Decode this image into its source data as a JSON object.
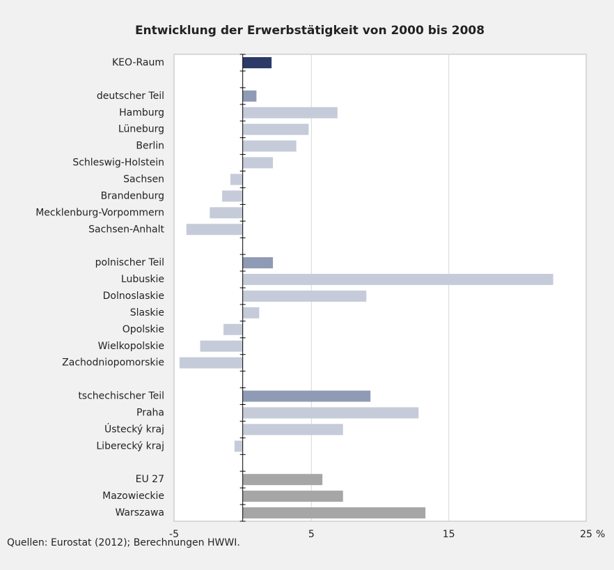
{
  "chart_data": {
    "type": "barh",
    "title": "Entwicklung der Erwerbstätigkeit von 2000 bis 2008",
    "categories": [
      "KEO-Raum",
      null,
      "deutscher Teil",
      "Hamburg",
      "Lüneburg",
      "Berlin",
      "Schleswig-Holstein",
      "Sachsen",
      "Brandenburg",
      "Mecklenburg-Vorpommern",
      "Sachsen-Anhalt",
      null,
      "polnischer Teil",
      "Lubuskie",
      "Dolnoslaskie",
      "Slaskie",
      "Opolskie",
      "Wielkopolskie",
      "Zachodniopomorskie",
      null,
      "tschechischer Teil",
      "Praha",
      "Ústecký kraj",
      "Liberecký kraj",
      null,
      "EU 27",
      "Mazowieckie",
      "Warszawa"
    ],
    "values": [
      2.1,
      null,
      1.0,
      6.9,
      4.8,
      3.9,
      2.2,
      -0.9,
      -1.5,
      -2.4,
      -4.1,
      null,
      2.2,
      22.6,
      9.0,
      1.2,
      -1.4,
      -3.1,
      -4.6,
      null,
      9.3,
      12.8,
      7.3,
      -0.6,
      null,
      5.8,
      7.3,
      13.3
    ],
    "colors": [
      "#2b3a67",
      null,
      "#8f9bb5",
      "#c5cbd9",
      "#c5cbd9",
      "#c5cbd9",
      "#c5cbd9",
      "#c5cbd9",
      "#c5cbd9",
      "#c5cbd9",
      "#c5cbd9",
      null,
      "#8f9bb5",
      "#c5cbd9",
      "#c5cbd9",
      "#c5cbd9",
      "#c5cbd9",
      "#c5cbd9",
      "#c5cbd9",
      null,
      "#8f9bb5",
      "#c5cbd9",
      "#c5cbd9",
      "#c5cbd9",
      null,
      "#a6a6a6",
      "#a6a6a6",
      "#a6a6a6"
    ],
    "xlim": [
      -5,
      25
    ],
    "xticks": [
      -5,
      5,
      15,
      25
    ],
    "xlabel": "%",
    "grid": true,
    "source": "Quellen: Eurostat (2012); Berechnungen HWWI."
  }
}
